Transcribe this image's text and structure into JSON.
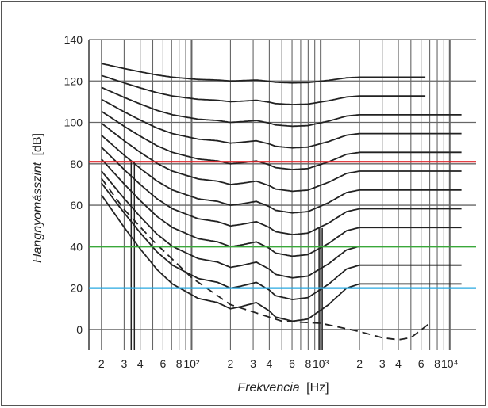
{
  "chart_data": {
    "type": "line",
    "title": "",
    "xlabel_italic": "Frekvencia",
    "xlabel_unit": "[Hz]",
    "ylabel_italic": "Hangnyomásszint",
    "ylabel_unit": "[dB]",
    "x_scale": "log",
    "xlim": [
      16,
      16000
    ],
    "ylim": [
      -10,
      140
    ],
    "grid": true,
    "y_ticks": [
      "140",
      "120",
      "100",
      "80",
      "60",
      "40",
      "20",
      "0"
    ],
    "y_tick_values": [
      140,
      120,
      100,
      80,
      60,
      40,
      20,
      0
    ],
    "x_ticks": [
      {
        "value": 20,
        "label": "2"
      },
      {
        "value": 30,
        "label": "3"
      },
      {
        "value": 40,
        "label": "4"
      },
      {
        "value": 60,
        "label": "6"
      },
      {
        "value": 80,
        "label": "8"
      },
      {
        "value": 100,
        "label": "10²"
      },
      {
        "value": 200,
        "label": "2"
      },
      {
        "value": 300,
        "label": "3"
      },
      {
        "value": 400,
        "label": "4"
      },
      {
        "value": 600,
        "label": "6"
      },
      {
        "value": 800,
        "label": "8"
      },
      {
        "value": 1000,
        "label": "10³"
      },
      {
        "value": 2000,
        "label": "2"
      },
      {
        "value": 3000,
        "label": "3"
      },
      {
        "value": 4000,
        "label": "4"
      },
      {
        "value": 6000,
        "label": "6"
      },
      {
        "value": 8000,
        "label": "8"
      },
      {
        "value": 10000,
        "label": "10⁴"
      }
    ],
    "reference_lines": [
      {
        "y": 81,
        "color": "#e0242a"
      },
      {
        "y": 40,
        "color": "#3aa83a"
      },
      {
        "y": 20,
        "color": "#28a8e0"
      }
    ],
    "marker_verticals": [
      {
        "x": 35,
        "y_top": 81
      },
      {
        "x": 1000,
        "y_top": 49
      }
    ],
    "threshold_dashed": {
      "x": [
        20,
        30,
        50,
        100,
        200,
        500,
        1000,
        2000,
        3000,
        4000,
        5000,
        7000
      ],
      "y": [
        73,
        58,
        43,
        25,
        12,
        4,
        3,
        -1,
        -4,
        -5,
        -4,
        3
      ]
    },
    "contour_levels": [
      10,
      20,
      30,
      40,
      50,
      60,
      70,
      80,
      90,
      100,
      110,
      120
    ]
  }
}
